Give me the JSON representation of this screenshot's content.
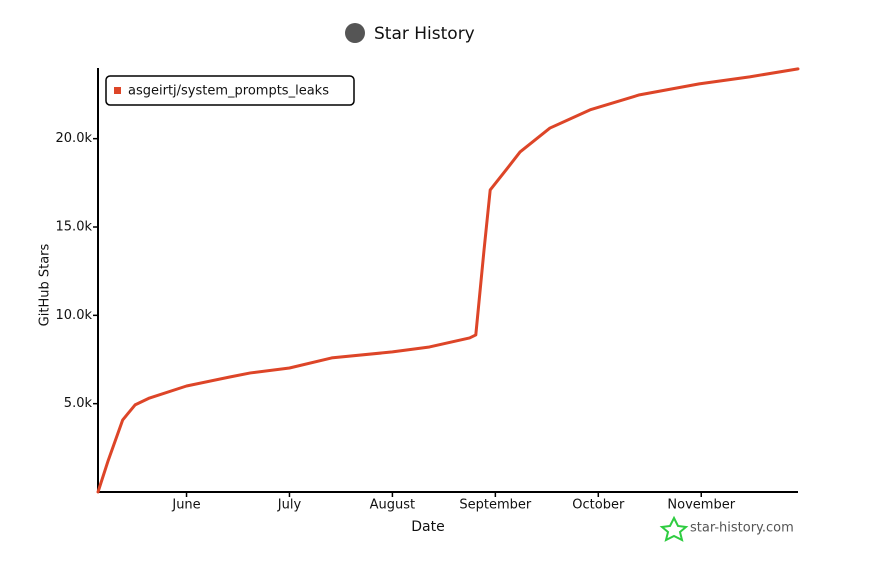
{
  "chart_data": {
    "type": "line",
    "title": "Star History",
    "xlabel": "Date",
    "ylabel": "GitHub Stars",
    "watermark": "star-history.com",
    "legend": "upper left",
    "xlim": [
      5.14,
      11.94
    ],
    "xticks": [
      {
        "value": 6,
        "label": "June"
      },
      {
        "value": 7,
        "label": "July"
      },
      {
        "value": 8,
        "label": "August"
      },
      {
        "value": 9,
        "label": "September"
      },
      {
        "value": 10,
        "label": "October"
      },
      {
        "value": 11,
        "label": "November"
      }
    ],
    "ylim": [
      0,
      24000
    ],
    "yticks": [
      {
        "value": 5000,
        "label": "5.0k"
      },
      {
        "value": 10000,
        "label": "10.0k"
      },
      {
        "value": 15000,
        "label": "15.0k"
      },
      {
        "value": 20000,
        "label": "20.0k"
      }
    ],
    "series": [
      {
        "name": "asgeirtj/system_prompts_leaks",
        "color": "#dd4528",
        "x": [
          5.14,
          5.24,
          5.38,
          5.5,
          5.64,
          6.0,
          6.42,
          6.62,
          7.0,
          7.41,
          8.0,
          8.36,
          8.75,
          8.81,
          8.89,
          8.95,
          9.1,
          9.24,
          9.53,
          9.92,
          10.4,
          10.98,
          11.47,
          11.94
        ],
        "values": [
          0,
          1800,
          4080,
          4930,
          5320,
          6000,
          6510,
          6740,
          7020,
          7590,
          7930,
          8210,
          8720,
          8890,
          13700,
          17100,
          18200,
          19250,
          20600,
          21630,
          22480,
          23100,
          23500,
          23950
        ]
      }
    ]
  }
}
